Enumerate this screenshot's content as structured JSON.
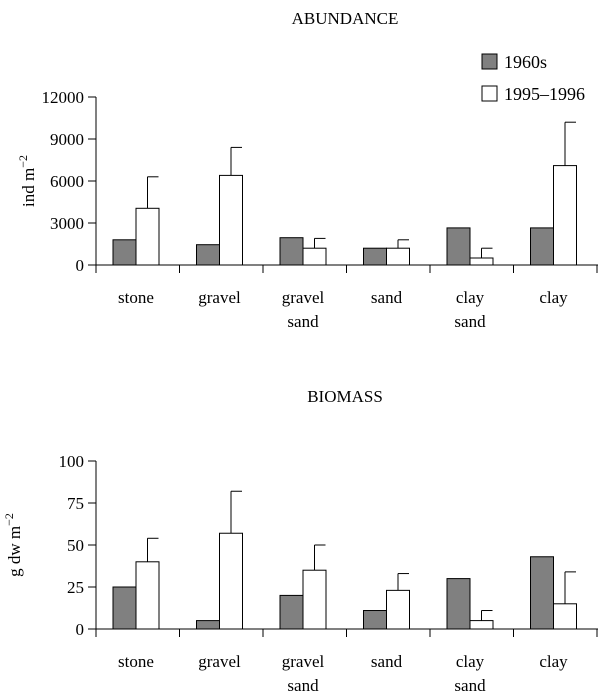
{
  "legend": {
    "series": [
      {
        "name": "1960s",
        "color": "#808080"
      },
      {
        "name": "1995–1996",
        "color": "#ffffff"
      }
    ],
    "placement": "top-right"
  },
  "chart_data": [
    {
      "type": "bar",
      "title": "ABUNDANCE",
      "ylabel": "ind m",
      "ylabel_sup": "−2",
      "ylim": [
        0,
        12000
      ],
      "yticks": [
        "0",
        "3000",
        "6000",
        "9000",
        "12000"
      ],
      "categories": [
        [
          "stone"
        ],
        [
          "gravel"
        ],
        [
          "gravel",
          "sand"
        ],
        [
          "sand"
        ],
        [
          "clay",
          "sand"
        ],
        [
          "clay"
        ]
      ],
      "series": [
        {
          "name": "1960s",
          "values": [
            1800,
            1450,
            1950,
            1200,
            2650,
            2650
          ],
          "errors": [
            null,
            null,
            null,
            null,
            null,
            null
          ]
        },
        {
          "name": "1995–1996",
          "values": [
            4050,
            6400,
            1200,
            1200,
            500,
            7100
          ],
          "errors": [
            6300,
            8400,
            1900,
            1800,
            1200,
            10200
          ]
        }
      ]
    },
    {
      "type": "bar",
      "title": "BIOMASS",
      "ylabel": "g dw m",
      "ylabel_sup": "−2",
      "ylim": [
        0,
        100
      ],
      "yticks": [
        "0",
        "25",
        "50",
        "75",
        "100"
      ],
      "categories": [
        [
          "stone"
        ],
        [
          "gravel"
        ],
        [
          "gravel",
          "sand"
        ],
        [
          "sand"
        ],
        [
          "clay",
          "sand"
        ],
        [
          "clay"
        ]
      ],
      "series": [
        {
          "name": "1960s",
          "values": [
            25,
            5,
            20,
            11,
            30,
            43
          ],
          "errors": [
            null,
            null,
            null,
            null,
            null,
            null
          ]
        },
        {
          "name": "1995–1996",
          "values": [
            40,
            57,
            35,
            23,
            5,
            15
          ],
          "errors": [
            54,
            82,
            50,
            33,
            11,
            34
          ]
        }
      ]
    }
  ]
}
